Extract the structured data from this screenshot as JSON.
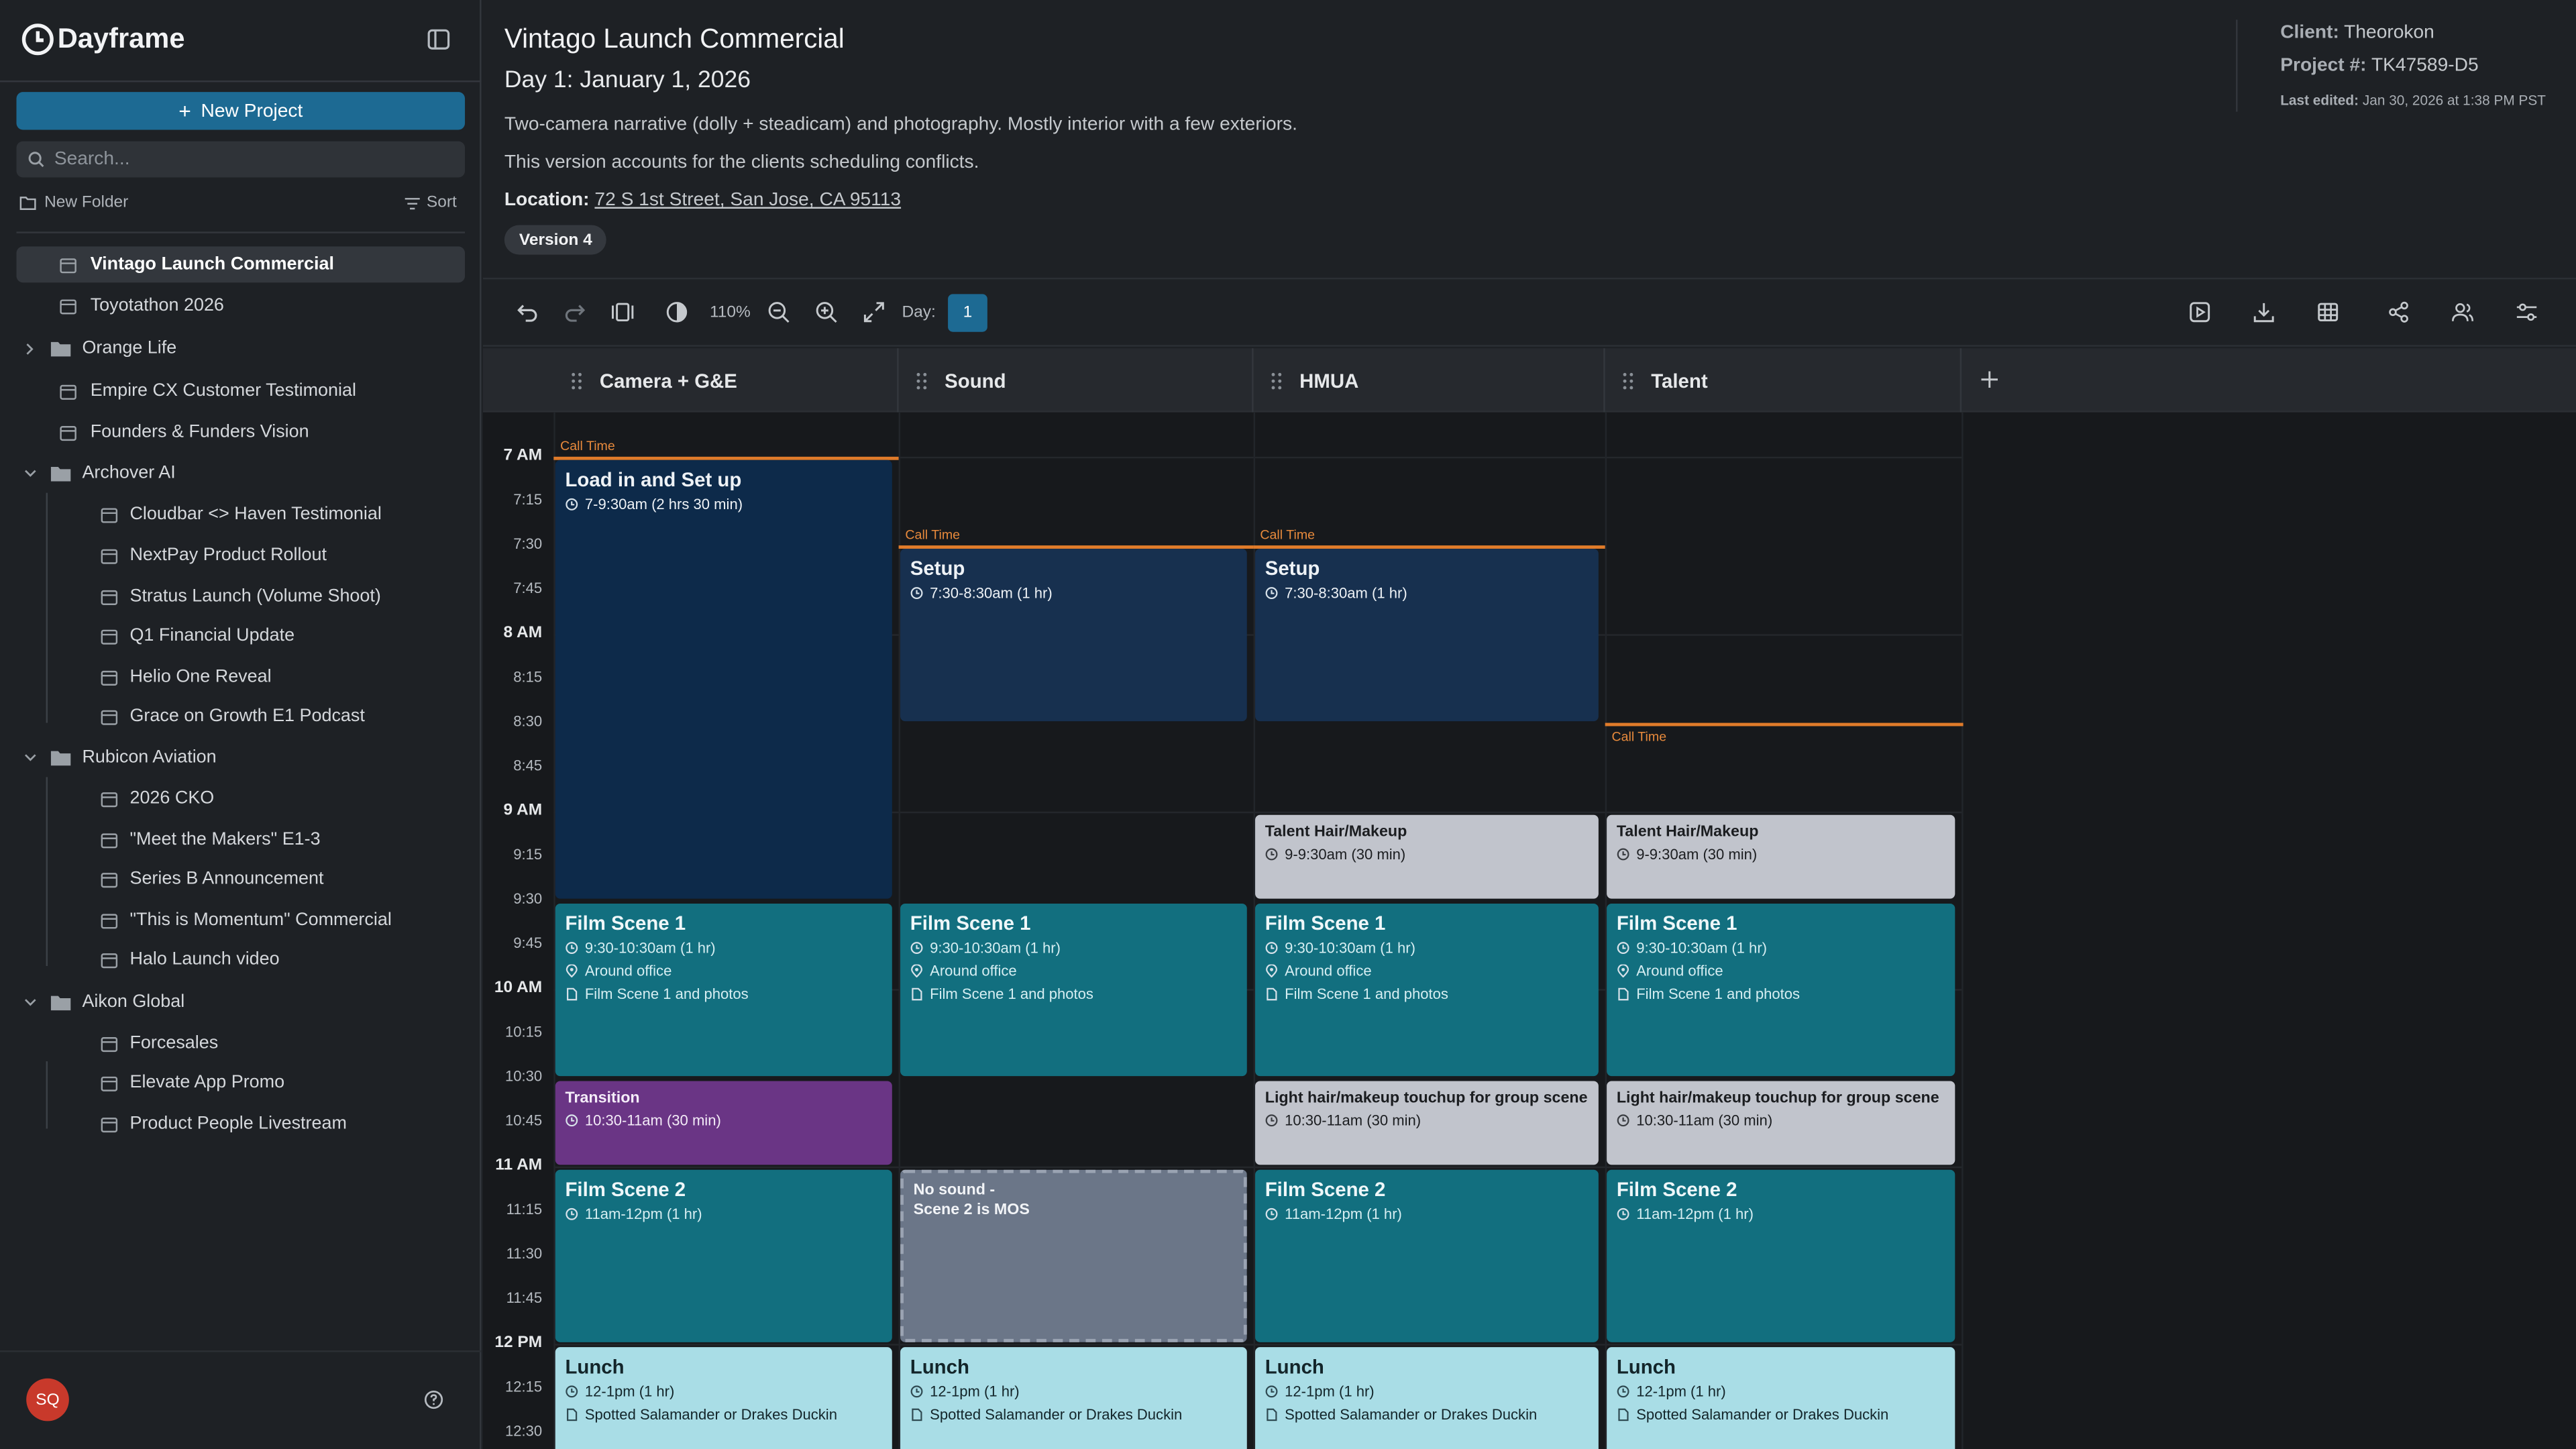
{
  "app": {
    "name": "Dayframe"
  },
  "sidebar": {
    "new_project": "New Project",
    "search_placeholder": "Search...",
    "new_folder": "New Folder",
    "sort": "Sort",
    "items": [
      {
        "label": "Vintago Launch Commercial",
        "type": "project",
        "level": 0,
        "selected": true
      },
      {
        "label": "Toyotathon 2026",
        "type": "project",
        "level": 0
      },
      {
        "label": "Orange Life",
        "type": "folder",
        "level": 0,
        "expanded": false
      },
      {
        "label": "Empire CX Customer Testimonial",
        "type": "project",
        "level": 0
      },
      {
        "label": "Founders & Funders Vision",
        "type": "project",
        "level": 0
      },
      {
        "label": "Archover AI",
        "type": "folder",
        "level": 0,
        "expanded": true
      },
      {
        "label": "Cloudbar <> Haven Testimonial",
        "type": "project",
        "level": 1
      },
      {
        "label": "NextPay Product Rollout",
        "type": "project",
        "level": 1
      },
      {
        "label": "Stratus Launch (Volume Shoot)",
        "type": "project",
        "level": 1
      },
      {
        "label": "Q1 Financial Update",
        "type": "project",
        "level": 1
      },
      {
        "label": "Helio One Reveal",
        "type": "project",
        "level": 1
      },
      {
        "label": "Grace on Growth E1 Podcast",
        "type": "project",
        "level": 1
      },
      {
        "label": "Rubicon Aviation",
        "type": "folder",
        "level": 0,
        "expanded": true
      },
      {
        "label": "2026 CKO",
        "type": "project",
        "level": 1
      },
      {
        "label": "\"Meet the Makers\" E1-3",
        "type": "project",
        "level": 1
      },
      {
        "label": "Series B Announcement",
        "type": "project",
        "level": 1
      },
      {
        "label": "\"This is Momentum\" Commercial",
        "type": "project",
        "level": 1
      },
      {
        "label": "Halo Launch video",
        "type": "project",
        "level": 1
      },
      {
        "label": "Aikon Global",
        "type": "folder",
        "level": 0,
        "expanded": true
      },
      {
        "label": "Forcesales",
        "type": "project",
        "level": 1
      },
      {
        "label": "Elevate App Promo",
        "type": "project",
        "level": 1
      },
      {
        "label": "Product People Livestream",
        "type": "project",
        "level": 1
      }
    ],
    "user_initials": "SQ"
  },
  "header": {
    "title": "Vintago Launch Commercial",
    "day": "Day 1: January 1, 2026",
    "description1": "Two-camera narrative (dolly + steadicam) and photography. Mostly interior with a few exteriors.",
    "description2": "This version accounts for the clients scheduling conflicts.",
    "location_label": "Location:",
    "location": "72 S 1st Street, San Jose, CA 95113",
    "version": "Version 4",
    "client_label": "Client:",
    "client": "Theorokon",
    "project_label": "Project #:",
    "project_number": "TK47589-D5",
    "edited_label": "Last edited:",
    "edited": "Jan 30, 2026 at 1:38 PM PST"
  },
  "toolbar": {
    "zoom": "110%",
    "day_label": "Day:",
    "day": "1"
  },
  "columns": [
    "Camera + G&E",
    "Sound",
    "HMUA",
    "Talent"
  ],
  "call_time_label": "Call Time",
  "times": [
    {
      "label": "7 AM",
      "hour": true
    },
    {
      "label": "7:15"
    },
    {
      "label": "7:30"
    },
    {
      "label": "7:45"
    },
    {
      "label": "8 AM",
      "hour": true
    },
    {
      "label": "8:15"
    },
    {
      "label": "8:30"
    },
    {
      "label": "8:45"
    },
    {
      "label": "9 AM",
      "hour": true
    },
    {
      "label": "9:15"
    },
    {
      "label": "9:30"
    },
    {
      "label": "9:45"
    },
    {
      "label": "10 AM",
      "hour": true
    },
    {
      "label": "10:15"
    },
    {
      "label": "10:30"
    },
    {
      "label": "10:45"
    },
    {
      "label": "11 AM",
      "hour": true
    },
    {
      "label": "11:15"
    },
    {
      "label": "11:30"
    },
    {
      "label": "11:45"
    },
    {
      "label": "12 PM",
      "hour": true
    },
    {
      "label": "12:15"
    },
    {
      "label": "12:30"
    }
  ],
  "events": {
    "load_in": {
      "title": "Load in and Set up",
      "time": "7-9:30am (2 hrs 30 min)"
    },
    "setup": {
      "title": "Setup",
      "time": "7:30-8:30am (1 hr)"
    },
    "hair_makeup": {
      "title": "Talent Hair/Makeup",
      "time": "9-9:30am (30 min)"
    },
    "film1": {
      "title": "Film Scene 1",
      "time": "9:30-10:30am (1 hr)",
      "location": "Around office",
      "note": "Film Scene 1 and photos"
    },
    "transition": {
      "title": "Transition",
      "time": "10:30-11am (30 min)"
    },
    "touchup": {
      "title": "Light hair/makeup touchup for group scene",
      "time": "10:30-11am (30 min)"
    },
    "film2": {
      "title": "Film Scene 2",
      "time": "11am-12pm (1 hr)"
    },
    "no_sound": {
      "title1": "No sound -",
      "title2": "Scene 2 is MOS"
    },
    "lunch": {
      "title": "Lunch",
      "time": "12-1pm (1 hr)",
      "note": "Spotted Salamander or Drakes Duckin"
    }
  }
}
